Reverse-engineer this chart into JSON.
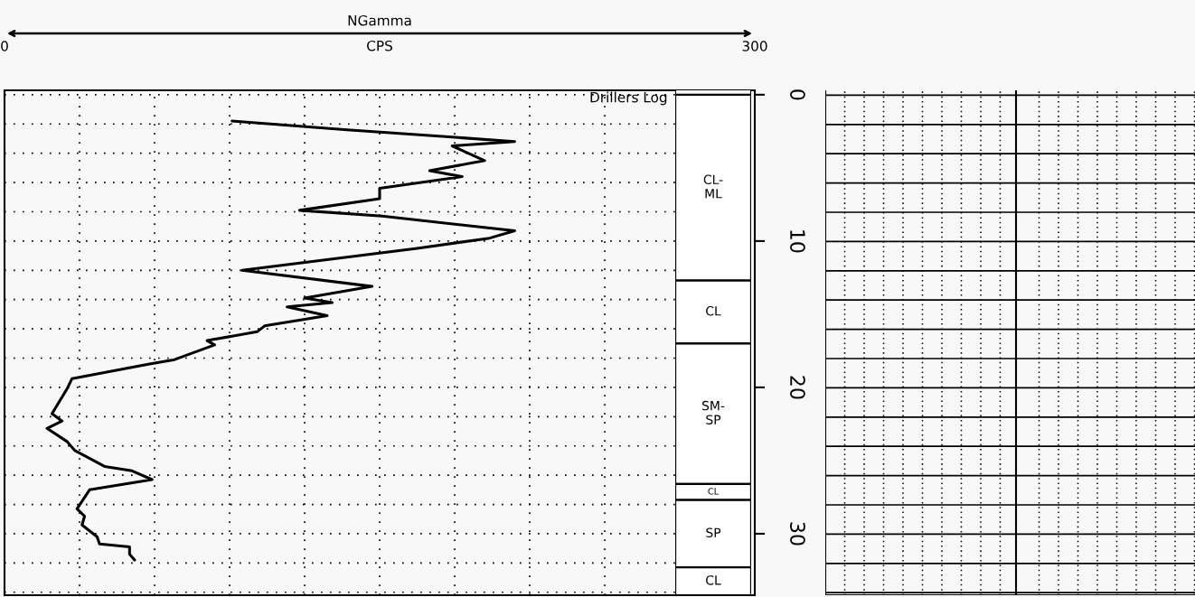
{
  "chart_data": [
    {
      "type": "line",
      "title": "NGamma",
      "xlabel": "CPS",
      "xlim": [
        0,
        300
      ],
      "xticks": [
        0,
        {
          "value": 30,
          "label": null
        },
        {
          "value": 60,
          "label": null
        },
        {
          "value": 90,
          "label": null
        },
        {
          "value": 120,
          "label": null
        },
        {
          "value": 150,
          "label": null
        },
        {
          "value": 180,
          "label": null
        },
        {
          "value": 210,
          "label": null
        },
        {
          "value": 240,
          "label": null
        },
        300
      ],
      "ylim": [
        34.2,
        -0.3
      ],
      "yticks": [
        0,
        {
          "value": 2,
          "label": null
        },
        {
          "value": 4,
          "label": null
        },
        {
          "value": 6,
          "label": null
        },
        {
          "value": 8,
          "label": null
        },
        10,
        {
          "value": 12,
          "label": null
        },
        {
          "value": 14,
          "label": null
        },
        {
          "value": 16,
          "label": null
        },
        {
          "value": 18,
          "label": null
        },
        20,
        {
          "value": 22,
          "label": null
        },
        {
          "value": 24,
          "label": null
        },
        {
          "value": 26,
          "label": null
        },
        {
          "value": 28,
          "label": null
        },
        30,
        {
          "value": 32,
          "label": null
        },
        {
          "value": 34,
          "label": null
        }
      ],
      "grid": true,
      "series": [
        {
          "color": "#000000",
          "x": [
            91,
            137,
            179,
            204,
            179,
            192,
            170,
            183,
            150,
            150,
            118,
            151,
            204,
            194,
            165,
            95,
            147,
            120,
            131,
            113,
            129,
            104,
            101,
            81,
            84,
            68,
            58,
            27,
            25,
            19,
            23,
            17,
            25,
            28,
            40,
            51,
            59,
            34,
            29,
            32,
            31,
            37,
            38,
            50,
            50,
            52
          ],
          "values": [
            1.8,
            2.4,
            2.9,
            3.2,
            3.5,
            4.5,
            5.2,
            5.6,
            6.4,
            7.1,
            7.9,
            8.3,
            9.3,
            9.8,
            10.5,
            12.0,
            13.1,
            13.9,
            14.2,
            14.5,
            15.1,
            15.8,
            16.2,
            16.8,
            17.1,
            18.1,
            18.4,
            19.4,
            20.1,
            21.8,
            22.3,
            22.8,
            23.7,
            24.3,
            25.4,
            25.7,
            26.3,
            27.0,
            28.3,
            28.8,
            29.4,
            30.2,
            30.7,
            30.9,
            31.4,
            31.8
          ]
        }
      ]
    },
    {
      "type": "bar",
      "title": "Drillers Log",
      "stacked": true,
      "categories": [
        null
      ],
      "ylim": [
        34.2,
        -0.3
      ],
      "series": [
        {
          "name": "CL-\nML",
          "color": "#ffffff",
          "values": [
            12.7
          ]
        },
        {
          "name": "CL",
          "color": "#ffffff",
          "values": [
            4.3
          ]
        },
        {
          "name": "SM-\nSP",
          "color": "#ffffff",
          "values": [
            9.6
          ]
        },
        {
          "name": "CL",
          "color": "#ffffff",
          "values": [
            1.1
          ]
        },
        {
          "name": "SP",
          "color": "#ffffff",
          "values": [
            4.6
          ]
        },
        {
          "name": "CL",
          "color": "#ffffff",
          "values": [
            1.9
          ]
        }
      ]
    }
  ]
}
